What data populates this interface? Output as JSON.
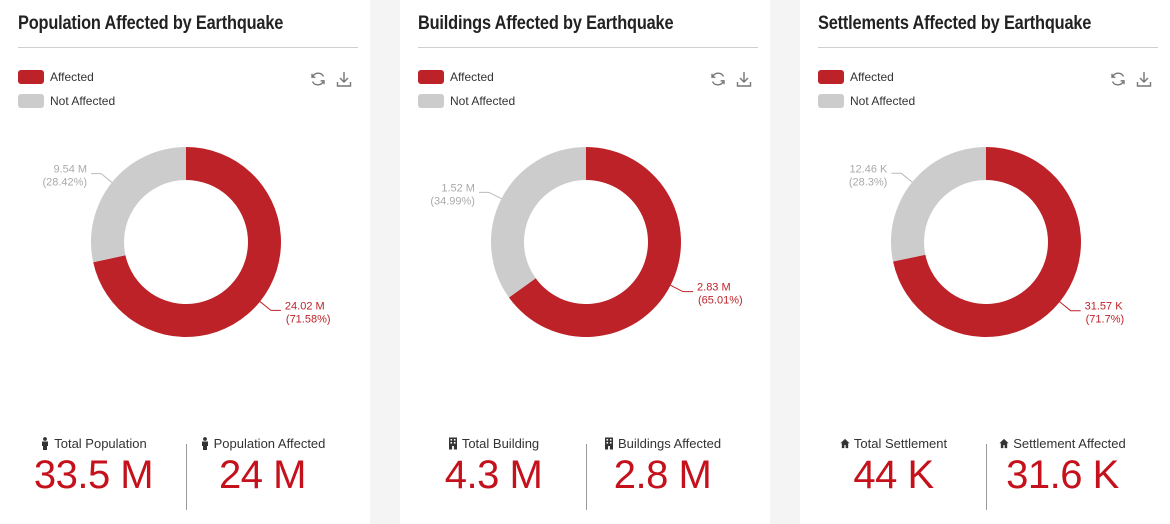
{
  "colors": {
    "affected": "#bd2228",
    "not_affected": "#cccccc",
    "value_red": "#c4111c"
  },
  "panels": [
    {
      "title": "Population Affected by Earthquake",
      "legend": {
        "affected": "Affected",
        "not_affected": "Not Affected"
      },
      "icons": {
        "refresh": "refresh-icon",
        "download": "download-icon",
        "stat_icon": "person-icon"
      },
      "stats": {
        "total_label": "Total Population",
        "total_value": "33.5 M",
        "affected_label": "Population Affected",
        "affected_value": "24 M"
      }
    },
    {
      "title": "Buildings Affected by Earthquake",
      "legend": {
        "affected": "Affected",
        "not_affected": "Not Affected"
      },
      "icons": {
        "refresh": "refresh-icon",
        "download": "download-icon",
        "stat_icon": "building-icon"
      },
      "stats": {
        "total_label": "Total Building",
        "total_value": "4.3 M",
        "affected_label": "Buildings Affected",
        "affected_value": "2.8 M"
      }
    },
    {
      "title": "Settlements Affected by Earthquake",
      "legend": {
        "affected": "Affected",
        "not_affected": "Not Affected"
      },
      "icons": {
        "refresh": "refresh-icon",
        "download": "download-icon",
        "stat_icon": "home-icon"
      },
      "stats": {
        "total_label": "Total Settlement",
        "total_value": "44 K",
        "affected_label": "Settlement Affected",
        "affected_value": "31.6 K"
      }
    }
  ],
  "chart_data": [
    {
      "type": "pie",
      "title": "Population Affected by Earthquake",
      "categories": [
        "Affected",
        "Not Affected"
      ],
      "values": [
        24.02,
        9.54
      ],
      "unit": "M",
      "value_labels": [
        "24.02 M",
        "9.54 M"
      ],
      "percent_labels": [
        "(71.58%)",
        "(28.42%)"
      ],
      "legend_position": "top-left"
    },
    {
      "type": "pie",
      "title": "Buildings Affected by Earthquake",
      "categories": [
        "Affected",
        "Not Affected"
      ],
      "values": [
        2.83,
        1.52
      ],
      "unit": "M",
      "value_labels": [
        "2.83 M",
        "1.52 M"
      ],
      "percent_labels": [
        "(65.01%)",
        "(34.99%)"
      ],
      "legend_position": "top-left"
    },
    {
      "type": "pie",
      "title": "Settlements Affected by Earthquake",
      "categories": [
        "Affected",
        "Not Affected"
      ],
      "values": [
        31.57,
        12.46
      ],
      "unit": "K",
      "value_labels": [
        "31.57 K",
        "12.46 K"
      ],
      "percent_labels": [
        "(71.7%)",
        "(28.3%)"
      ],
      "legend_position": "top-left"
    }
  ]
}
